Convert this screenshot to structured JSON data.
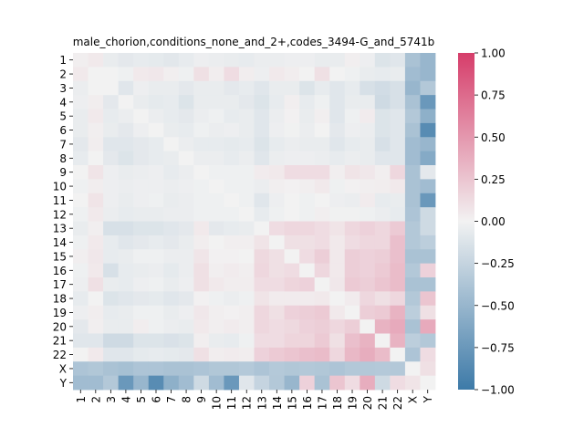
{
  "chart_data": {
    "type": "heatmap",
    "title": "male_chorion,conditions_none_and_2+,codes_3494-G_and_5741b",
    "labels": [
      "1",
      "2",
      "3",
      "4",
      "5",
      "6",
      "7",
      "8",
      "9",
      "10",
      "11",
      "12",
      "13",
      "14",
      "15",
      "16",
      "17",
      "18",
      "19",
      "20",
      "21",
      "22",
      "X",
      "Y"
    ],
    "colorbar": {
      "min": -1.0,
      "max": 1.0,
      "ticks": [
        1.0,
        0.75,
        0.5,
        0.25,
        0.0,
        -0.25,
        -0.5,
        -0.75,
        -1.0
      ],
      "tick_labels": [
        "1.00",
        "0.75",
        "0.50",
        "0.25",
        "0.00",
        "−0.25",
        "−0.50",
        "−0.75",
        "−1.00"
      ]
    },
    "colors": {
      "negative": "#3d7aa8",
      "center": "#f2f2f2",
      "positive": "#d63d6a"
    },
    "values": [
      [
        0.02,
        0.05,
        -0.05,
        -0.08,
        -0.06,
        -0.07,
        -0.09,
        -0.06,
        -0.03,
        -0.04,
        -0.05,
        -0.06,
        -0.04,
        -0.04,
        -0.03,
        -0.03,
        -0.05,
        -0.05,
        0.02,
        -0.03,
        -0.12,
        -0.1,
        -0.4,
        -0.5
      ],
      [
        0.05,
        0.0,
        0.0,
        -0.02,
        0.05,
        0.06,
        0.02,
        -0.02,
        0.1,
        0.03,
        0.12,
        0.03,
        -0.03,
        0.05,
        0.03,
        0.0,
        0.1,
        0.0,
        -0.02,
        -0.05,
        -0.06,
        -0.05,
        -0.45,
        -0.5
      ],
      [
        -0.04,
        0.0,
        0.0,
        -0.1,
        -0.03,
        -0.05,
        -0.05,
        -0.08,
        -0.05,
        -0.05,
        -0.08,
        -0.06,
        -0.1,
        -0.05,
        -0.05,
        -0.12,
        -0.06,
        -0.1,
        -0.06,
        -0.15,
        -0.18,
        -0.15,
        -0.5,
        -0.35
      ],
      [
        -0.03,
        0.03,
        -0.08,
        0.0,
        -0.05,
        -0.07,
        -0.06,
        -0.12,
        -0.05,
        -0.05,
        -0.05,
        -0.08,
        -0.12,
        -0.06,
        0.02,
        -0.06,
        -0.02,
        -0.1,
        -0.05,
        -0.05,
        -0.2,
        -0.15,
        -0.4,
        -0.75
      ],
      [
        -0.05,
        0.05,
        -0.06,
        -0.04,
        0.0,
        -0.04,
        -0.06,
        -0.08,
        -0.04,
        -0.02,
        -0.06,
        -0.05,
        -0.1,
        -0.04,
        0.01,
        -0.05,
        0.02,
        -0.1,
        -0.02,
        0.04,
        -0.12,
        -0.1,
        -0.35,
        -0.55
      ],
      [
        -0.05,
        0.02,
        -0.05,
        -0.08,
        -0.03,
        0.0,
        -0.05,
        -0.06,
        -0.02,
        -0.04,
        -0.03,
        -0.05,
        -0.1,
        -0.03,
        -0.01,
        -0.04,
        0.0,
        -0.08,
        -0.03,
        -0.04,
        -0.12,
        -0.1,
        -0.4,
        -0.85
      ],
      [
        -0.08,
        0.03,
        -0.1,
        -0.1,
        -0.08,
        -0.06,
        0.0,
        -0.04,
        -0.06,
        -0.06,
        -0.07,
        -0.06,
        -0.12,
        -0.06,
        -0.04,
        -0.05,
        -0.05,
        -0.1,
        -0.06,
        -0.05,
        -0.15,
        -0.1,
        -0.45,
        -0.5
      ],
      [
        -0.06,
        0.0,
        -0.08,
        -0.12,
        -0.08,
        -0.06,
        -0.05,
        0.0,
        -0.04,
        -0.04,
        -0.06,
        -0.04,
        -0.1,
        -0.04,
        -0.03,
        -0.03,
        -0.04,
        -0.06,
        -0.04,
        -0.05,
        -0.1,
        -0.1,
        -0.45,
        -0.6
      ],
      [
        0.0,
        0.08,
        -0.03,
        -0.05,
        -0.04,
        -0.03,
        -0.06,
        -0.04,
        0.0,
        -0.02,
        -0.02,
        -0.02,
        0.04,
        0.05,
        0.12,
        0.12,
        0.12,
        0.02,
        0.08,
        0.06,
        0.02,
        0.15,
        -0.4,
        -0.08
      ],
      [
        -0.02,
        0.03,
        -0.03,
        -0.04,
        -0.03,
        -0.03,
        -0.04,
        -0.03,
        -0.02,
        0.0,
        -0.02,
        -0.02,
        -0.04,
        0.02,
        0.01,
        0.02,
        0.05,
        -0.02,
        0.01,
        0.02,
        0.03,
        0.05,
        -0.4,
        -0.45
      ],
      [
        0.0,
        0.08,
        -0.03,
        -0.05,
        -0.03,
        -0.02,
        -0.05,
        -0.04,
        -0.02,
        -0.02,
        0.0,
        -0.02,
        -0.1,
        -0.03,
        0.0,
        -0.02,
        0.0,
        -0.03,
        -0.04,
        0.04,
        -0.06,
        -0.05,
        -0.4,
        -0.75
      ],
      [
        -0.02,
        0.05,
        -0.04,
        -0.06,
        -0.05,
        -0.05,
        -0.04,
        -0.04,
        -0.02,
        -0.02,
        -0.02,
        0.0,
        -0.06,
        -0.02,
        0.0,
        -0.02,
        0.02,
        -0.01,
        -0.01,
        -0.02,
        -0.04,
        -0.06,
        -0.38,
        -0.2
      ],
      [
        -0.05,
        0.02,
        -0.15,
        -0.15,
        -0.12,
        -0.12,
        -0.1,
        -0.08,
        0.05,
        -0.08,
        -0.06,
        -0.05,
        0.0,
        0.12,
        0.15,
        0.15,
        0.12,
        0.08,
        0.15,
        0.18,
        0.15,
        0.22,
        -0.35,
        -0.2
      ],
      [
        -0.02,
        0.05,
        -0.06,
        -0.1,
        -0.08,
        -0.06,
        -0.08,
        -0.05,
        0.03,
        0.0,
        0.02,
        0.02,
        0.08,
        0.0,
        0.1,
        0.1,
        0.12,
        0.05,
        0.12,
        0.15,
        0.15,
        0.28,
        -0.35,
        -0.3
      ],
      [
        0.02,
        0.06,
        -0.06,
        -0.05,
        -0.02,
        -0.02,
        -0.04,
        -0.04,
        0.07,
        0.01,
        0.01,
        0.0,
        0.14,
        0.1,
        0.0,
        0.12,
        0.2,
        0.05,
        0.2,
        0.18,
        0.2,
        0.28,
        -0.4,
        -0.4
      ],
      [
        -0.02,
        0.05,
        -0.15,
        -0.06,
        -0.05,
        -0.04,
        -0.07,
        -0.04,
        0.1,
        0.02,
        0.04,
        0.02,
        0.15,
        0.1,
        0.12,
        0.0,
        0.15,
        0.05,
        0.2,
        0.18,
        0.22,
        0.3,
        -0.35,
        0.18
      ],
      [
        -0.03,
        0.1,
        -0.05,
        -0.06,
        -0.03,
        -0.02,
        -0.05,
        -0.03,
        0.1,
        0.05,
        0.03,
        0.03,
        0.12,
        0.12,
        0.16,
        0.18,
        0.0,
        0.06,
        0.22,
        0.2,
        0.25,
        0.3,
        -0.4,
        -0.4
      ],
      [
        -0.06,
        0.0,
        -0.12,
        -0.1,
        -0.08,
        -0.07,
        -0.1,
        -0.08,
        0.01,
        -0.02,
        -0.04,
        -0.02,
        0.08,
        0.04,
        0.04,
        0.04,
        0.05,
        0.0,
        0.04,
        0.15,
        0.1,
        0.15,
        -0.35,
        0.25
      ],
      [
        -0.03,
        0.03,
        -0.06,
        -0.05,
        -0.02,
        -0.02,
        -0.05,
        -0.03,
        0.06,
        0.02,
        0.01,
        0.02,
        0.15,
        0.1,
        0.18,
        0.2,
        0.22,
        0.05,
        0.0,
        0.2,
        0.22,
        0.35,
        -0.3,
        0.1
      ],
      [
        -0.08,
        0.02,
        -0.05,
        -0.05,
        0.03,
        -0.02,
        -0.04,
        -0.05,
        0.05,
        0.02,
        0.04,
        0.02,
        0.15,
        0.12,
        0.14,
        0.18,
        0.2,
        0.15,
        0.2,
        0.0,
        0.35,
        0.4,
        -0.4,
        0.4
      ],
      [
        -0.1,
        -0.1,
        -0.2,
        -0.2,
        -0.12,
        -0.12,
        -0.14,
        -0.12,
        0.02,
        -0.05,
        -0.06,
        -0.02,
        0.12,
        0.12,
        0.16,
        0.16,
        0.22,
        0.1,
        0.28,
        0.35,
        0.0,
        0.35,
        -0.3,
        -0.35
      ],
      [
        0.0,
        0.05,
        -0.1,
        -0.1,
        -0.07,
        -0.06,
        -0.07,
        -0.08,
        0.1,
        0.03,
        0.04,
        0.03,
        0.18,
        0.22,
        0.25,
        0.28,
        0.3,
        0.15,
        0.32,
        0.38,
        0.3,
        0.0,
        -0.38,
        0.12
      ],
      [
        -0.38,
        -0.36,
        -0.4,
        -0.42,
        -0.38,
        -0.38,
        -0.4,
        -0.4,
        -0.38,
        -0.36,
        -0.36,
        -0.34,
        -0.38,
        -0.34,
        -0.36,
        -0.35,
        -0.36,
        -0.38,
        -0.35,
        -0.35,
        -0.34,
        -0.35,
        0.0,
        0.1
      ],
      [
        -0.45,
        -0.45,
        -0.35,
        -0.75,
        -0.5,
        -0.85,
        -0.55,
        -0.45,
        -0.2,
        -0.45,
        -0.75,
        -0.1,
        -0.25,
        -0.35,
        -0.5,
        0.18,
        -0.4,
        0.25,
        0.12,
        0.38,
        -0.2,
        0.12,
        0.08,
        0.0
      ]
    ]
  }
}
